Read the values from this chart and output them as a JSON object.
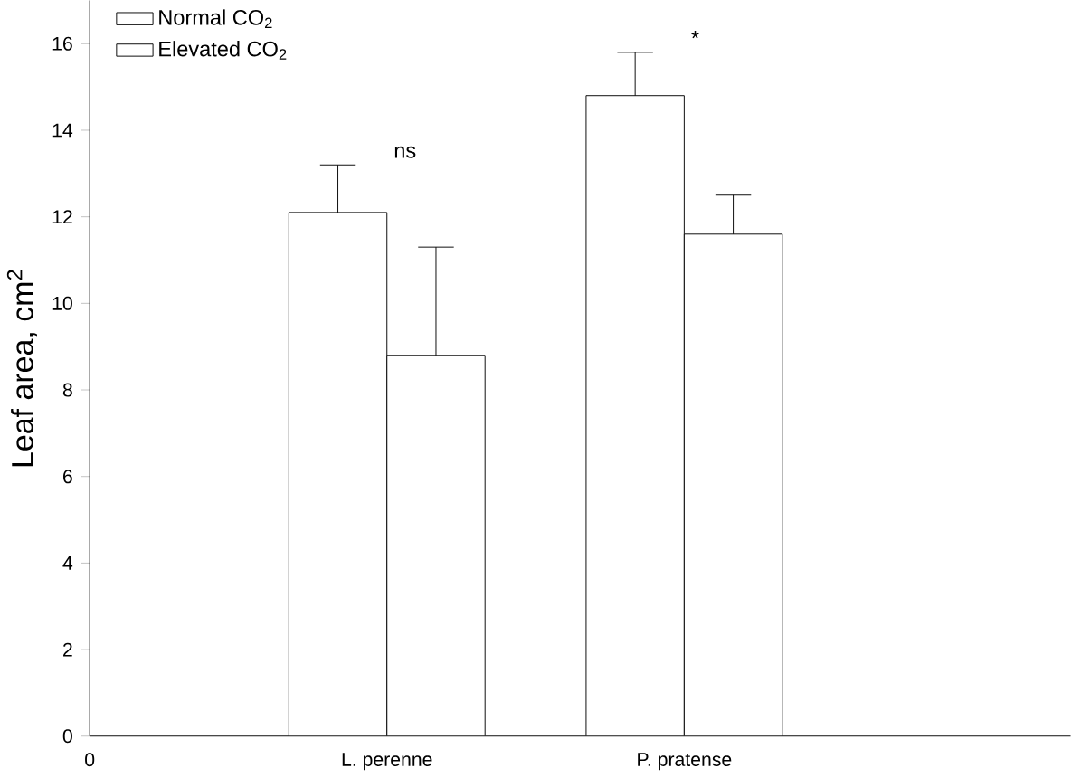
{
  "chart_data": {
    "type": "bar",
    "ylabel": "Leaf area, cm$^{2}$",
    "categories": [
      "0",
      "L. perenne",
      "P. pratense"
    ],
    "series": [
      {
        "name": "Normal CO$_{2}$",
        "color": "#ffffff",
        "values": [
          null,
          12.1,
          14.8
        ],
        "errors": [
          null,
          [
            12.1,
            13.2
          ],
          [
            14.8,
            15.8
          ]
        ]
      },
      {
        "name": "Elevated CO$_{2}$",
        "color": "#ffffff",
        "values": [
          null,
          8.8,
          11.6
        ],
        "errors": [
          null,
          [
            8.8,
            11.3
          ],
          [
            11.6,
            12.5
          ]
        ]
      }
    ],
    "ylim": [
      0,
      17
    ],
    "yticks": [
      0,
      2,
      4,
      6,
      8,
      10,
      12,
      14,
      16
    ],
    "annotations": [
      "ns",
      "*"
    ],
    "legend": "top left",
    "grid": false
  }
}
